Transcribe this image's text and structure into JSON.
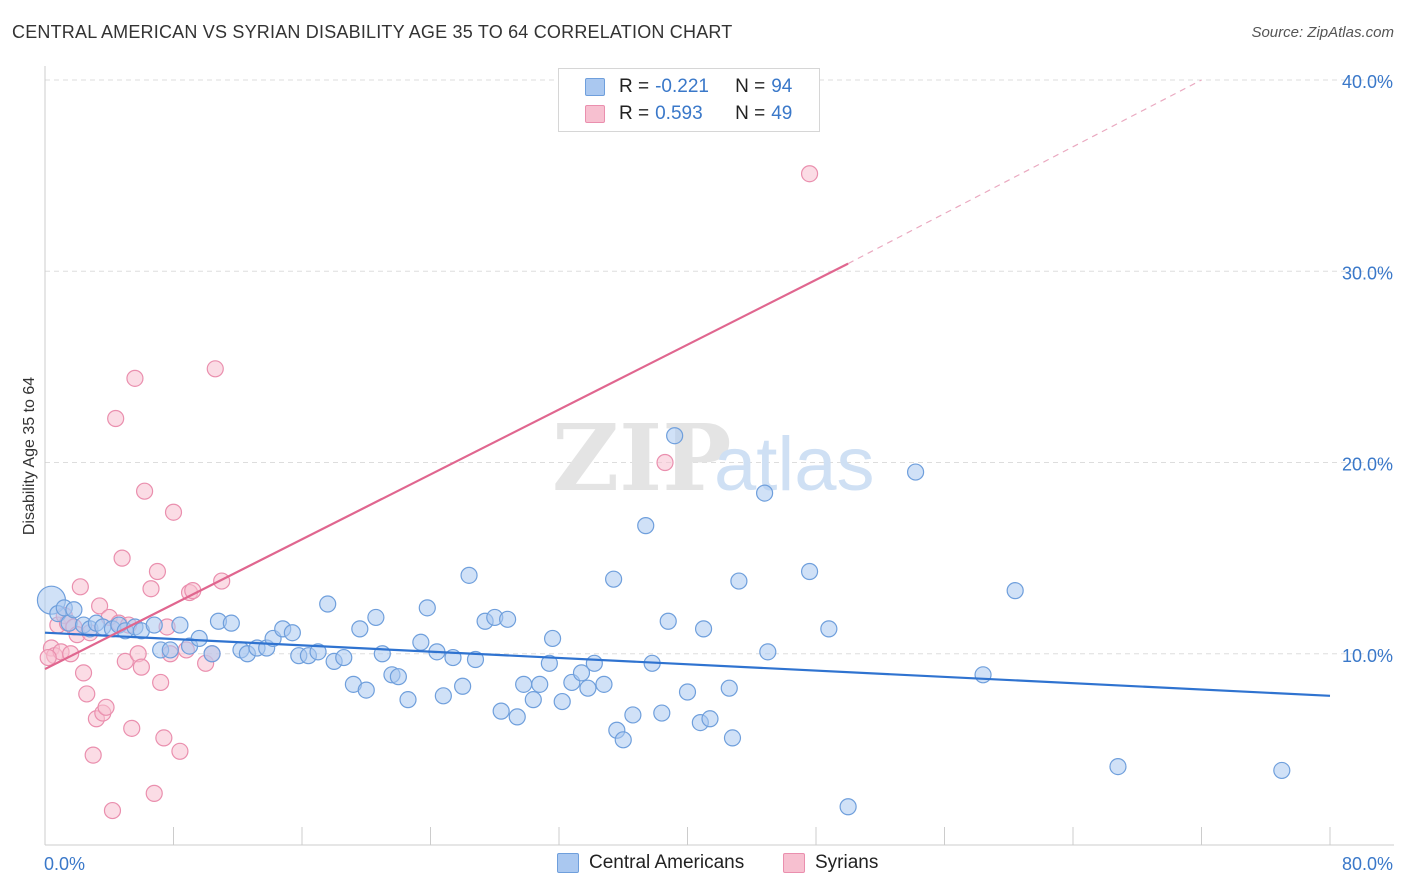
{
  "title": "CENTRAL AMERICAN VS SYRIAN DISABILITY AGE 35 TO 64 CORRELATION CHART",
  "source": "Source: ZipAtlas.com",
  "watermark": {
    "zip": "ZIP",
    "atlas": "atlas"
  },
  "legend": {
    "r_label": "R =",
    "n_label": "N =",
    "series": [
      {
        "r": "-0.221",
        "n": "94"
      },
      {
        "r": "0.593",
        "n": "49"
      }
    ]
  },
  "bottom_legend": [
    "Central Americans",
    "Syrians"
  ],
  "colors": {
    "blue_fill": "#aac8f0",
    "blue_stroke": "#6f9fdc",
    "blue_line": "#2f73d0",
    "pink_fill": "#f7c0d0",
    "pink_stroke": "#ea8fae",
    "pink_line": "#e0668f",
    "axis_text": "#3a78c9"
  },
  "chart_data": {
    "type": "scatter",
    "title": "CENTRAL AMERICAN VS SYRIAN DISABILITY AGE 35 TO 64 CORRELATION CHART",
    "xlabel": "",
    "ylabel": "Disability Age 35 to 64",
    "xlim": [
      0,
      80
    ],
    "ylim": [
      0,
      40
    ],
    "x_tick_labels": [
      "0.0%",
      "80.0%"
    ],
    "y_ticks": [
      10,
      20,
      30,
      40
    ],
    "y_tick_labels": [
      "10.0%",
      "20.0%",
      "30.0%",
      "40.0%"
    ],
    "grid": true,
    "series": [
      {
        "name": "Central Americans",
        "r": -0.221,
        "n": 94,
        "trend": {
          "x": [
            0,
            80
          ],
          "y": [
            11.1,
            7.8
          ],
          "style": "solid"
        },
        "points": [
          [
            0.4,
            12.8
          ],
          [
            0.8,
            12.1
          ],
          [
            1.2,
            12.4
          ],
          [
            1.5,
            11.6
          ],
          [
            1.8,
            12.3
          ],
          [
            2.4,
            11.5
          ],
          [
            2.8,
            11.3
          ],
          [
            3.2,
            11.6
          ],
          [
            3.6,
            11.4
          ],
          [
            4.2,
            11.3
          ],
          [
            4.6,
            11.5
          ],
          [
            5.0,
            11.2
          ],
          [
            5.6,
            11.4
          ],
          [
            6.0,
            11.2
          ],
          [
            6.8,
            11.5
          ],
          [
            7.2,
            10.2
          ],
          [
            7.8,
            10.2
          ],
          [
            8.4,
            11.5
          ],
          [
            9.0,
            10.4
          ],
          [
            9.6,
            10.8
          ],
          [
            10.4,
            10.0
          ],
          [
            10.8,
            11.7
          ],
          [
            11.6,
            11.6
          ],
          [
            12.2,
            10.2
          ],
          [
            12.6,
            10.0
          ],
          [
            13.2,
            10.3
          ],
          [
            13.8,
            10.3
          ],
          [
            14.2,
            10.8
          ],
          [
            14.8,
            11.3
          ],
          [
            15.4,
            11.1
          ],
          [
            15.8,
            9.9
          ],
          [
            16.4,
            9.9
          ],
          [
            17.0,
            10.1
          ],
          [
            17.6,
            12.6
          ],
          [
            18.0,
            9.6
          ],
          [
            18.6,
            9.8
          ],
          [
            19.2,
            8.4
          ],
          [
            19.6,
            11.3
          ],
          [
            20.0,
            8.1
          ],
          [
            20.6,
            11.9
          ],
          [
            21.0,
            10.0
          ],
          [
            21.6,
            8.9
          ],
          [
            22.0,
            8.8
          ],
          [
            22.6,
            7.6
          ],
          [
            23.4,
            10.6
          ],
          [
            23.8,
            12.4
          ],
          [
            24.4,
            10.1
          ],
          [
            24.8,
            7.8
          ],
          [
            25.4,
            9.8
          ],
          [
            26.0,
            8.3
          ],
          [
            26.4,
            14.1
          ],
          [
            26.8,
            9.7
          ],
          [
            27.4,
            11.7
          ],
          [
            28.0,
            11.9
          ],
          [
            28.4,
            7.0
          ],
          [
            28.8,
            11.8
          ],
          [
            29.4,
            6.7
          ],
          [
            29.8,
            8.4
          ],
          [
            30.4,
            7.6
          ],
          [
            30.8,
            8.4
          ],
          [
            31.4,
            9.5
          ],
          [
            31.6,
            10.8
          ],
          [
            32.2,
            7.5
          ],
          [
            32.8,
            8.5
          ],
          [
            33.4,
            9.0
          ],
          [
            33.8,
            8.2
          ],
          [
            34.2,
            9.5
          ],
          [
            34.8,
            8.4
          ],
          [
            35.4,
            13.9
          ],
          [
            35.6,
            6.0
          ],
          [
            36.0,
            5.5
          ],
          [
            36.6,
            6.8
          ],
          [
            37.4,
            16.7
          ],
          [
            37.8,
            9.5
          ],
          [
            38.4,
            6.9
          ],
          [
            38.8,
            11.7
          ],
          [
            39.2,
            21.4
          ],
          [
            40.0,
            8.0
          ],
          [
            40.8,
            6.4
          ],
          [
            41.0,
            11.3
          ],
          [
            41.4,
            6.6
          ],
          [
            42.6,
            8.2
          ],
          [
            42.8,
            5.6
          ],
          [
            43.2,
            13.8
          ],
          [
            44.8,
            18.4
          ],
          [
            45.0,
            10.1
          ],
          [
            47.6,
            14.3
          ],
          [
            48.8,
            11.3
          ],
          [
            50.0,
            2.0
          ],
          [
            54.2,
            19.5
          ],
          [
            58.4,
            8.9
          ],
          [
            60.4,
            13.3
          ],
          [
            66.8,
            4.1
          ],
          [
            77.0,
            3.9
          ]
        ]
      },
      {
        "name": "Syrians",
        "r": 0.593,
        "n": 49,
        "trend": {
          "x": [
            0,
            50
          ],
          "y": [
            9.2,
            30.4
          ],
          "style": "solid",
          "extended": {
            "x": [
              50,
              72
            ],
            "y": [
              30.4,
              40.0
            ],
            "style": "dashed"
          }
        },
        "points": [
          [
            0.4,
            10.3
          ],
          [
            0.6,
            9.9
          ],
          [
            0.8,
            11.5
          ],
          [
            1.0,
            10.1
          ],
          [
            1.2,
            12.0
          ],
          [
            1.4,
            11.6
          ],
          [
            1.6,
            10.0
          ],
          [
            1.8,
            11.4
          ],
          [
            2.0,
            11.0
          ],
          [
            2.2,
            13.5
          ],
          [
            2.4,
            9.0
          ],
          [
            2.6,
            7.9
          ],
          [
            2.8,
            11.1
          ],
          [
            3.0,
            4.7
          ],
          [
            3.2,
            6.6
          ],
          [
            3.4,
            12.5
          ],
          [
            3.6,
            6.9
          ],
          [
            3.8,
            7.2
          ],
          [
            4.0,
            11.9
          ],
          [
            4.2,
            1.8
          ],
          [
            4.4,
            22.3
          ],
          [
            4.6,
            11.6
          ],
          [
            4.8,
            15.0
          ],
          [
            5.0,
            9.6
          ],
          [
            5.2,
            11.5
          ],
          [
            5.4,
            6.1
          ],
          [
            5.6,
            24.4
          ],
          [
            5.8,
            10.0
          ],
          [
            6.0,
            9.3
          ],
          [
            6.2,
            18.5
          ],
          [
            6.6,
            13.4
          ],
          [
            6.8,
            2.7
          ],
          [
            7.0,
            14.3
          ],
          [
            7.2,
            8.5
          ],
          [
            7.4,
            5.6
          ],
          [
            7.6,
            11.4
          ],
          [
            7.8,
            10.0
          ],
          [
            8.0,
            17.4
          ],
          [
            8.4,
            4.9
          ],
          [
            8.8,
            10.2
          ],
          [
            9.0,
            13.2
          ],
          [
            9.2,
            13.3
          ],
          [
            10.0,
            9.5
          ],
          [
            10.4,
            10.0
          ],
          [
            10.6,
            24.9
          ],
          [
            11.0,
            13.8
          ],
          [
            38.6,
            20.0
          ],
          [
            47.6,
            35.1
          ],
          [
            0.2,
            9.8
          ]
        ]
      }
    ]
  }
}
